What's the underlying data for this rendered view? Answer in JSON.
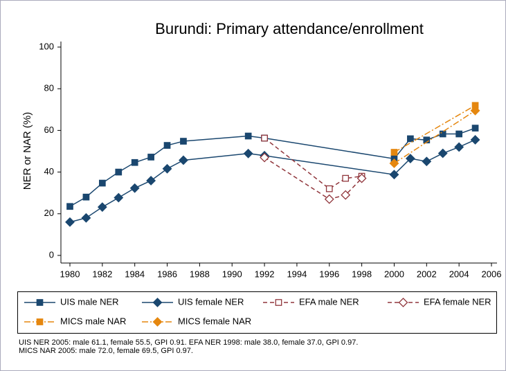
{
  "chart_data": {
    "type": "line",
    "title": "Burundi: Primary attendance/enrollment",
    "ylabel": "NER or NAR (%)",
    "xlim": [
      1980,
      2006
    ],
    "xticks": [
      1980,
      1982,
      1984,
      1986,
      1988,
      1990,
      1992,
      1994,
      1996,
      1998,
      2000,
      2002,
      2004,
      2006
    ],
    "ylim": [
      0,
      100
    ],
    "yticks": [
      0,
      20,
      40,
      60,
      80,
      100
    ],
    "grid": false,
    "legend": "bottom",
    "series": [
      {
        "name": "UIS male NER",
        "color": "#1a476f",
        "marker": "square",
        "filled": true,
        "dash": "solid",
        "x": [
          1980,
          1981,
          1982,
          1983,
          1984,
          1985,
          1986,
          1987,
          1991,
          1992,
          2000,
          2001,
          2002,
          2003,
          2004,
          2005
        ],
        "values": [
          23.5,
          28,
          34.7,
          40,
          44.6,
          47.2,
          52.8,
          54.8,
          57.3,
          56.3,
          46.4,
          56,
          55.4,
          58.3,
          58.3,
          61.1
        ]
      },
      {
        "name": "UIS female NER",
        "color": "#1a476f",
        "marker": "diamond",
        "filled": true,
        "dash": "solid",
        "x": [
          1980,
          1981,
          1982,
          1983,
          1984,
          1985,
          1986,
          1987,
          1991,
          1992,
          2000,
          2001,
          2002,
          2003,
          2004,
          2005
        ],
        "values": [
          16,
          18,
          23.2,
          27.7,
          32.3,
          35.9,
          41.6,
          45.7,
          48.9,
          47.9,
          38.8,
          46.5,
          45.1,
          49,
          52,
          55.5
        ]
      },
      {
        "name": "EFA male NER",
        "color": "#90353b",
        "marker": "square",
        "filled": false,
        "dash": "dashed",
        "x": [
          1992,
          1996,
          1997,
          1998
        ],
        "values": [
          56.3,
          32,
          37,
          38
        ]
      },
      {
        "name": "EFA female NER",
        "color": "#90353b",
        "marker": "diamond",
        "filled": false,
        "dash": "dashed",
        "x": [
          1992,
          1996,
          1997,
          1998
        ],
        "values": [
          47,
          27,
          29,
          37
        ]
      },
      {
        "name": "MICS male NAR",
        "color": "#e5870f",
        "marker": "square",
        "filled": true,
        "dash": "dashdot",
        "x": [
          2000,
          2005
        ],
        "values": [
          49.5,
          72
        ]
      },
      {
        "name": "MICS female NAR",
        "color": "#e5870f",
        "marker": "diamond",
        "filled": true,
        "dash": "dashdot",
        "x": [
          2000,
          2005
        ],
        "values": [
          44.2,
          69.5
        ]
      }
    ],
    "notes": [
      "UIS NER 2005: male 61.1, female 55.5, GPI 0.91. EFA NER 1998: male 38.0, female 37.0, GPI 0.97.",
      "MICS NAR 2005: male 72.0, female 69.5, GPI 0.97."
    ]
  }
}
